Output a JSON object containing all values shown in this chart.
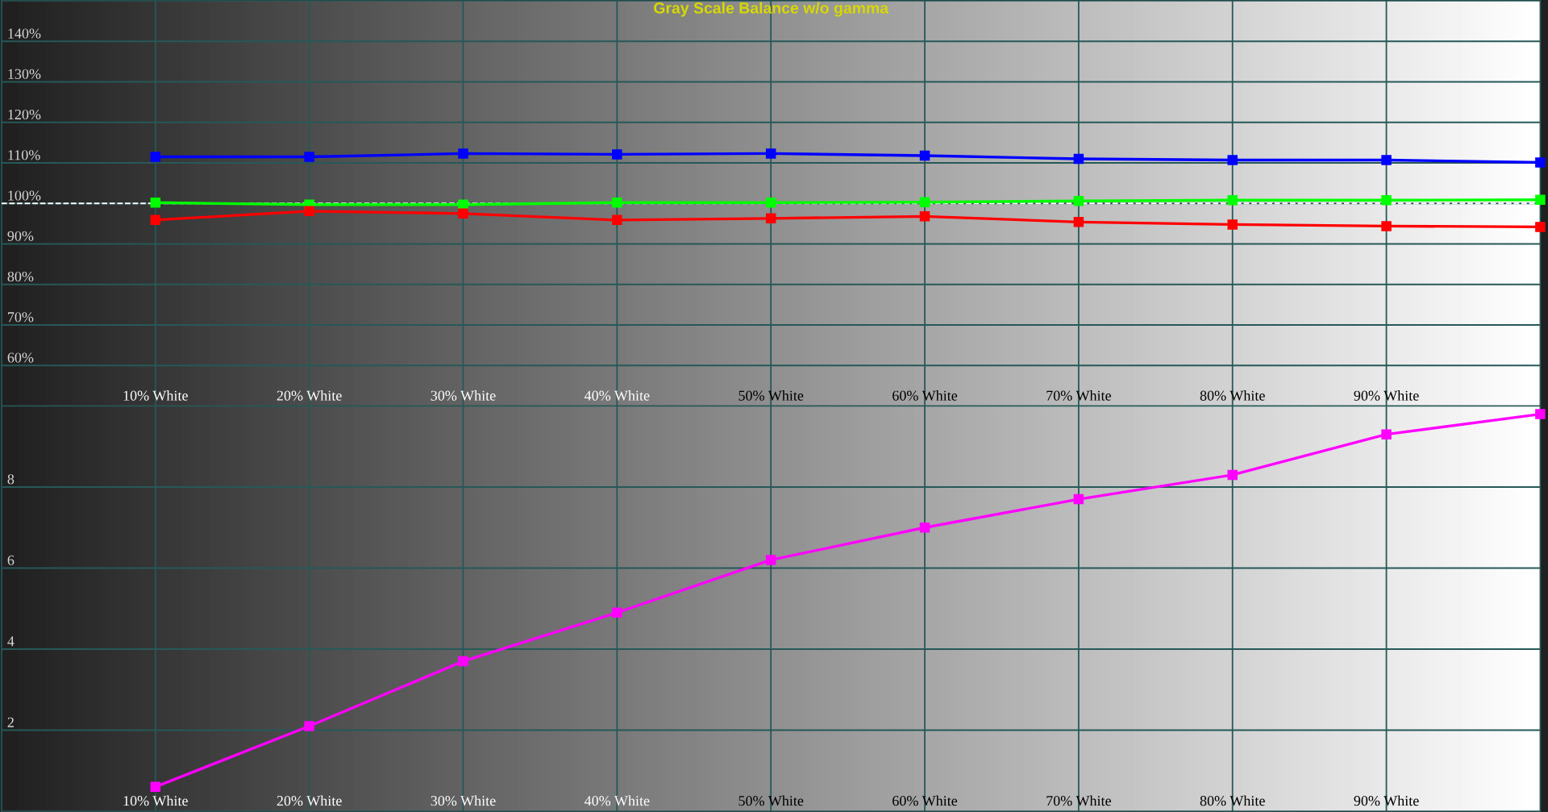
{
  "chart_data": [
    {
      "type": "line",
      "title": "Gray Scale Balance w/o gamma",
      "x": [
        10,
        20,
        30,
        40,
        50,
        60,
        70,
        80,
        90,
        100
      ],
      "series": [
        {
          "color": "#0000ff",
          "values": [
            111.5,
            111.5,
            112.3,
            112.1,
            112.3,
            111.8,
            111.0,
            110.7,
            110.7,
            110.1
          ]
        },
        {
          "color": "#00ff00",
          "values": [
            100.2,
            99.7,
            99.7,
            100.2,
            100.2,
            100.3,
            100.6,
            100.8,
            100.8,
            100.9
          ]
        },
        {
          "color": "#ff0000",
          "values": [
            95.9,
            98.1,
            97.5,
            95.9,
            96.3,
            96.8,
            95.4,
            94.8,
            94.4,
            94.2
          ]
        }
      ],
      "xlim": [
        0,
        100
      ],
      "xticks": [
        {
          "value": 10,
          "label": "10% White"
        },
        {
          "value": 20,
          "label": "20% White"
        },
        {
          "value": 30,
          "label": "30% White"
        },
        {
          "value": 40,
          "label": "40% White"
        },
        {
          "value": 50,
          "label": "50% White"
        },
        {
          "value": 60,
          "label": "60% White"
        },
        {
          "value": 70,
          "label": "70% White"
        },
        {
          "value": 80,
          "label": "80% White"
        },
        {
          "value": 90,
          "label": "90% White"
        }
      ],
      "ylim": [
        50,
        150
      ],
      "yticks": [
        {
          "value": 60,
          "label": "60%"
        },
        {
          "value": 70,
          "label": "70%"
        },
        {
          "value": 80,
          "label": "80%"
        },
        {
          "value": 90,
          "label": "90%"
        },
        {
          "value": 100,
          "label": "100%"
        },
        {
          "value": 110,
          "label": "110%"
        },
        {
          "value": 120,
          "label": "120%"
        },
        {
          "value": 130,
          "label": "130%"
        },
        {
          "value": 140,
          "label": "140%"
        }
      ],
      "grid": true,
      "marker": "square",
      "line_style": "solid",
      "ref_lines": [
        {
          "axis": "y",
          "value": 100,
          "color": "#ffffff",
          "line_style": "dashed"
        }
      ]
    },
    {
      "type": "line",
      "x": [
        10,
        20,
        30,
        40,
        50,
        60,
        70,
        80,
        90,
        100
      ],
      "series": [
        {
          "color": "#ff00ff",
          "values": [
            0.6,
            2.1,
            3.7,
            4.9,
            6.2,
            7.0,
            7.7,
            8.3,
            9.3,
            9.8
          ]
        }
      ],
      "xlim": [
        0,
        100
      ],
      "xticks": [
        {
          "value": 10,
          "label": "10% White"
        },
        {
          "value": 20,
          "label": "20% White"
        },
        {
          "value": 30,
          "label": "30% White"
        },
        {
          "value": 40,
          "label": "40% White"
        },
        {
          "value": 50,
          "label": "50% White"
        },
        {
          "value": 60,
          "label": "60% White"
        },
        {
          "value": 70,
          "label": "70% White"
        },
        {
          "value": 80,
          "label": "80% White"
        },
        {
          "value": 90,
          "label": "90% White"
        }
      ],
      "ylim": [
        0,
        10
      ],
      "yticks": [
        2,
        4,
        6,
        8
      ],
      "grid": true,
      "marker": "square",
      "line_style": "solid"
    }
  ]
}
